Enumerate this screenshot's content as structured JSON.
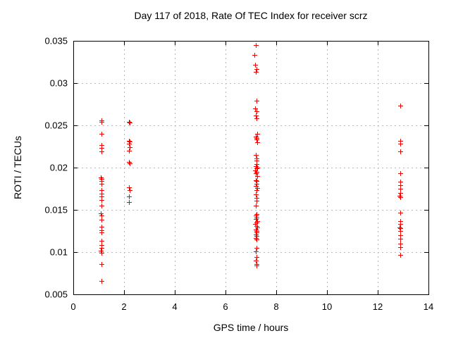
{
  "title": "Day 117 of 2018, Rate Of TEC Index for receiver scrz",
  "chart_data": {
    "type": "scatter",
    "title": "Day 117 of 2018, Rate Of TEC Index for receiver scrz",
    "xlabel": "GPS time / hours",
    "ylabel": "ROTI / TECUs",
    "xlim": [
      0,
      14
    ],
    "ylim": [
      0.005,
      0.035
    ],
    "grid": true,
    "legend": "none",
    "marker": "plus",
    "marker_color": "#ff0000",
    "grid_color": "#b8b8b8",
    "axis_color": "#000000",
    "xticks": [
      {
        "v": 0,
        "label": "0"
      },
      {
        "v": 2,
        "label": "2"
      },
      {
        "v": 4,
        "label": "4"
      },
      {
        "v": 6,
        "label": "6"
      },
      {
        "v": 8,
        "label": "8"
      },
      {
        "v": 10,
        "label": "10"
      },
      {
        "v": 12,
        "label": "12"
      },
      {
        "v": 14,
        "label": "14"
      }
    ],
    "yticks": [
      {
        "v": 0.005,
        "label": "0.005"
      },
      {
        "v": 0.01,
        "label": "0.01"
      },
      {
        "v": 0.015,
        "label": "0.015"
      },
      {
        "v": 0.02,
        "label": "0.02"
      },
      {
        "v": 0.025,
        "label": "0.025"
      },
      {
        "v": 0.03,
        "label": "0.03"
      },
      {
        "v": 0.035,
        "label": "0.035"
      }
    ],
    "series": [
      {
        "name": "ROTI",
        "points": [
          [
            1.1,
            0.0256
          ],
          [
            1.12,
            0.0254
          ],
          [
            1.1,
            0.024
          ],
          [
            1.1,
            0.0227
          ],
          [
            1.11,
            0.0223
          ],
          [
            1.1,
            0.0219
          ],
          [
            1.09,
            0.0188
          ],
          [
            1.12,
            0.0187
          ],
          [
            1.1,
            0.0184
          ],
          [
            1.11,
            0.0181
          ],
          [
            1.1,
            0.0173
          ],
          [
            1.12,
            0.0169
          ],
          [
            1.1,
            0.0166
          ],
          [
            1.11,
            0.0162
          ],
          [
            1.1,
            0.0155
          ],
          [
            1.09,
            0.0146
          ],
          [
            1.11,
            0.0143
          ],
          [
            1.1,
            0.0138
          ],
          [
            1.1,
            0.013
          ],
          [
            1.12,
            0.0126
          ],
          [
            1.1,
            0.0123
          ],
          [
            1.1,
            0.0113
          ],
          [
            1.11,
            0.0108
          ],
          [
            1.1,
            0.0105
          ],
          [
            1.09,
            0.0102
          ],
          [
            1.1,
            0.0099
          ],
          [
            1.1,
            0.0086
          ],
          [
            1.1,
            0.0066
          ],
          [
            2.2,
            0.0254
          ],
          [
            2.22,
            0.0253
          ],
          [
            2.2,
            0.0232
          ],
          [
            2.22,
            0.0231
          ],
          [
            2.2,
            0.0228
          ],
          [
            2.21,
            0.0224
          ],
          [
            2.2,
            0.022
          ],
          [
            2.2,
            0.0207
          ],
          [
            2.22,
            0.0205
          ],
          [
            2.2,
            0.0177
          ],
          [
            2.21,
            0.0173
          ],
          [
            2.2,
            0.0166
          ],
          [
            2.2,
            0.0159
          ],
          [
            7.2,
            0.0345
          ],
          [
            7.14,
            0.0333
          ],
          [
            7.18,
            0.0322
          ],
          [
            7.21,
            0.0317
          ],
          [
            7.19,
            0.0313
          ],
          [
            7.22,
            0.0279
          ],
          [
            7.18,
            0.027
          ],
          [
            7.21,
            0.0267
          ],
          [
            7.2,
            0.0262
          ],
          [
            7.22,
            0.0258
          ],
          [
            7.25,
            0.024
          ],
          [
            7.2,
            0.0237
          ],
          [
            7.23,
            0.0235
          ],
          [
            7.21,
            0.0233
          ],
          [
            7.24,
            0.023
          ],
          [
            7.2,
            0.0215
          ],
          [
            7.22,
            0.0211
          ],
          [
            7.21,
            0.0208
          ],
          [
            7.23,
            0.0204
          ],
          [
            7.2,
            0.0202
          ],
          [
            7.25,
            0.02
          ],
          [
            7.21,
            0.0199
          ],
          [
            7.18,
            0.0197
          ],
          [
            7.22,
            0.0195
          ],
          [
            7.2,
            0.0193
          ],
          [
            7.24,
            0.019
          ],
          [
            7.19,
            0.0185
          ],
          [
            7.23,
            0.0184
          ],
          [
            7.21,
            0.0181
          ],
          [
            7.2,
            0.0178
          ],
          [
            7.24,
            0.0176
          ],
          [
            7.21,
            0.0173
          ],
          [
            7.2,
            0.0168
          ],
          [
            7.22,
            0.0164
          ],
          [
            7.21,
            0.0161
          ],
          [
            7.2,
            0.0155
          ],
          [
            7.22,
            0.0145
          ],
          [
            7.19,
            0.0143
          ],
          [
            7.23,
            0.0141
          ],
          [
            7.2,
            0.0139
          ],
          [
            7.25,
            0.0137
          ],
          [
            7.21,
            0.0135
          ],
          [
            7.18,
            0.0133
          ],
          [
            7.22,
            0.0131
          ],
          [
            7.24,
            0.0129
          ],
          [
            7.2,
            0.0127
          ],
          [
            7.23,
            0.0125
          ],
          [
            7.21,
            0.0123
          ],
          [
            7.19,
            0.0121
          ],
          [
            7.22,
            0.0119
          ],
          [
            7.2,
            0.0117
          ],
          [
            7.23,
            0.0115
          ],
          [
            7.21,
            0.0105
          ],
          [
            7.2,
            0.0101
          ],
          [
            7.22,
            0.0094
          ],
          [
            7.2,
            0.009
          ],
          [
            7.21,
            0.0086
          ],
          [
            7.23,
            0.0084
          ],
          [
            12.88,
            0.0273
          ],
          [
            12.88,
            0.0232
          ],
          [
            12.9,
            0.0228
          ],
          [
            12.88,
            0.0219
          ],
          [
            12.88,
            0.0193
          ],
          [
            12.88,
            0.0183
          ],
          [
            12.9,
            0.0179
          ],
          [
            12.88,
            0.0175
          ],
          [
            12.89,
            0.017
          ],
          [
            12.87,
            0.0167
          ],
          [
            12.9,
            0.0165
          ],
          [
            12.88,
            0.0147
          ],
          [
            12.88,
            0.0137
          ],
          [
            12.9,
            0.0133
          ],
          [
            12.87,
            0.0129
          ],
          [
            12.89,
            0.0128
          ],
          [
            12.88,
            0.0125
          ],
          [
            12.9,
            0.012
          ],
          [
            12.88,
            0.0116
          ],
          [
            12.88,
            0.011
          ],
          [
            12.9,
            0.0106
          ],
          [
            12.88,
            0.0097
          ]
        ]
      }
    ]
  }
}
